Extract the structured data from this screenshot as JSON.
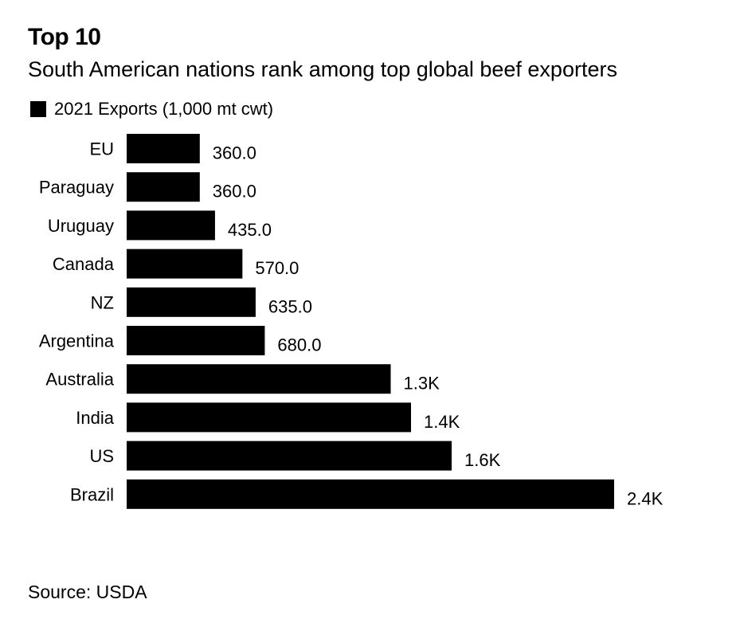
{
  "header": {
    "title": "Top 10",
    "subtitle": "South American nations rank among top global beef exporters"
  },
  "legend": {
    "label": "2021 Exports (1,000 mt cwt)"
  },
  "footer": {
    "source": "Source: USDA"
  },
  "colors": {
    "bar": "#000000",
    "text": "#000000",
    "background": "#ffffff"
  },
  "chart_data": {
    "type": "bar",
    "orientation": "horizontal",
    "categories": [
      "EU",
      "Paraguay",
      "Uruguay",
      "Canada",
      "NZ",
      "Argentina",
      "Australia",
      "India",
      "US",
      "Brazil"
    ],
    "series": [
      {
        "name": "2021 Exports (1,000 mt cwt)",
        "values": [
          360.0,
          360.0,
          435.0,
          570.0,
          635.0,
          680.0,
          1300,
          1400,
          1600,
          2400
        ],
        "labels": [
          "360.0",
          "360.0",
          "435.0",
          "570.0",
          "635.0",
          "680.0",
          "1.3K",
          "1.4K",
          "1.6K",
          "2.4K"
        ]
      }
    ],
    "title": "Top 10",
    "subtitle": "South American nations rank among top global beef exporters",
    "xlim": [
      0,
      2400
    ],
    "grid": false,
    "legend_position": "top-left"
  }
}
